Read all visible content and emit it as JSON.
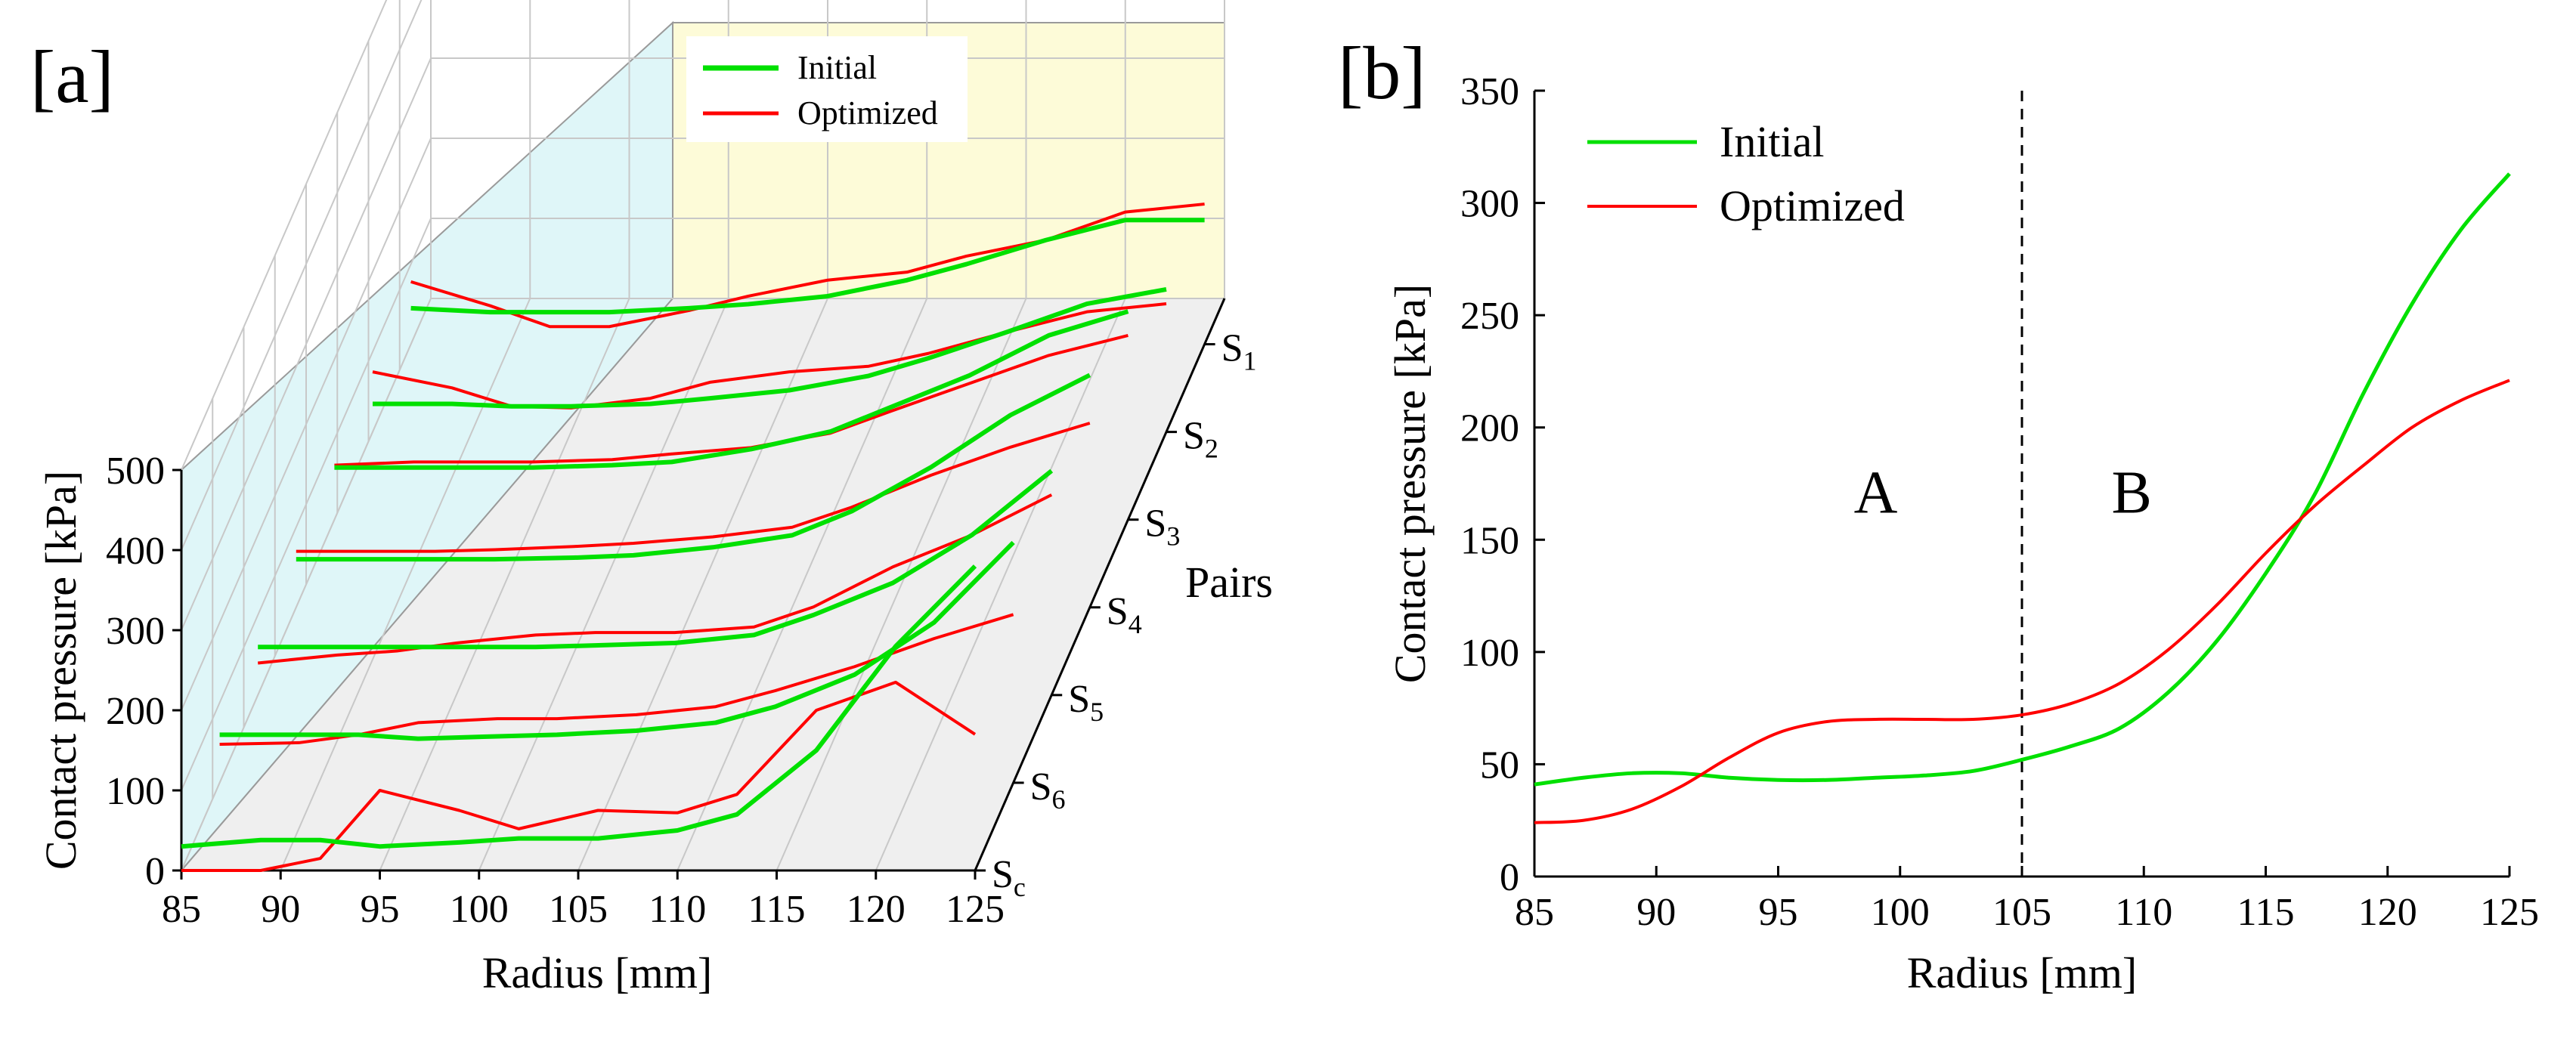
{
  "chart_data": [
    {
      "panel": "[a]",
      "type": "line",
      "xlabel": "Radius [mm]",
      "ylabel": "Contact pressure [kPa]",
      "zlabel": "Pairs",
      "xticks": [
        "85",
        "90",
        "95",
        "100",
        "105",
        "110",
        "115",
        "120",
        "125"
      ],
      "yticks": [
        "0",
        "100",
        "200",
        "300",
        "400",
        "500"
      ],
      "xlim": [
        85,
        125
      ],
      "ylim": [
        0,
        500
      ],
      "colors": {
        "initial": "#00e000",
        "optimized": "#ff0000",
        "back_wall": "#fdfbd8",
        "side_wall": "#dff6f8",
        "floor": "#efefef"
      },
      "legend": {
        "position": "top-right",
        "items": [
          {
            "key": "initial",
            "label": "Initial"
          },
          {
            "key": "optimized",
            "label": "Optimized"
          }
        ]
      },
      "pairs": [
        {
          "sub": "1",
          "x": [
            85,
            89,
            92,
            95,
            99,
            102,
            106,
            110,
            113,
            117,
            121,
            125
          ],
          "initial": [
            45,
            40,
            40,
            40,
            45,
            50,
            60,
            80,
            100,
            130,
            155,
            155
          ],
          "optimized": [
            78,
            48,
            22,
            22,
            42,
            60,
            80,
            90,
            110,
            130,
            165,
            175
          ]
        },
        {
          "sub": "2",
          "x": [
            85,
            89,
            92,
            95,
            99,
            102,
            106,
            110,
            113,
            117,
            121,
            125
          ],
          "initial": [
            35,
            35,
            32,
            32,
            35,
            42,
            52,
            70,
            92,
            125,
            160,
            178
          ],
          "optimized": [
            75,
            55,
            32,
            30,
            42,
            62,
            75,
            82,
            98,
            125,
            150,
            160
          ]
        },
        {
          "sub": "3",
          "x": [
            85,
            89,
            92,
            95,
            99,
            102,
            106,
            110,
            113,
            117,
            121,
            125
          ],
          "initial": [
            65,
            65,
            65,
            65,
            68,
            72,
            88,
            110,
            140,
            180,
            230,
            260
          ],
          "optimized": [
            68,
            72,
            72,
            72,
            75,
            82,
            90,
            108,
            135,
            170,
            205,
            230
          ]
        },
        {
          "sub": "4",
          "x": [
            85,
            89,
            92,
            95,
            99,
            102,
            106,
            110,
            113,
            117,
            121,
            125
          ],
          "initial": [
            60,
            60,
            60,
            60,
            62,
            65,
            75,
            90,
            120,
            175,
            240,
            290
          ],
          "optimized": [
            70,
            70,
            70,
            72,
            76,
            80,
            88,
            100,
            125,
            165,
            200,
            230
          ]
        },
        {
          "sub": "5",
          "x": [
            85,
            89,
            92,
            95,
            99,
            102,
            106,
            110,
            113,
            117,
            121,
            125
          ],
          "initial": [
            60,
            60,
            60,
            60,
            60,
            62,
            65,
            75,
            100,
            140,
            200,
            280
          ],
          "optimized": [
            40,
            50,
            55,
            65,
            75,
            78,
            78,
            85,
            110,
            160,
            200,
            250
          ]
        },
        {
          "sub": "6",
          "x": [
            85,
            89,
            92,
            95,
            99,
            102,
            106,
            110,
            113,
            117,
            121,
            125
          ],
          "initial": [
            60,
            60,
            60,
            55,
            58,
            60,
            65,
            75,
            95,
            135,
            200,
            300
          ],
          "optimized": [
            48,
            50,
            60,
            75,
            80,
            80,
            85,
            95,
            115,
            145,
            180,
            210
          ]
        },
        {
          "sub": "c",
          "x": [
            85,
            89,
            92,
            95,
            99,
            102,
            106,
            110,
            113,
            117,
            121,
            125
          ],
          "initial": [
            30,
            38,
            38,
            30,
            35,
            40,
            40,
            50,
            70,
            150,
            280,
            380
          ],
          "optimized": [
            0,
            0,
            15,
            100,
            75,
            52,
            75,
            72,
            95,
            200,
            235,
            170
          ]
        }
      ]
    },
    {
      "panel": "[b]",
      "type": "line",
      "xlabel": "Radius [mm]",
      "ylabel": "Contact pressure [kPa]",
      "xticks": [
        "85",
        "90",
        "95",
        "100",
        "105",
        "110",
        "115",
        "120",
        "125"
      ],
      "yticks": [
        "0",
        "50",
        "100",
        "150",
        "200",
        "250",
        "300",
        "350"
      ],
      "xlim": [
        85,
        125
      ],
      "ylim": [
        0,
        350
      ],
      "grid": false,
      "colors": {
        "initial": "#00e000",
        "optimized": "#ff0000"
      },
      "legend": {
        "position": "top-left",
        "items": [
          {
            "key": "initial",
            "label": "Initial"
          },
          {
            "key": "optimized",
            "label": "Optimized"
          }
        ]
      },
      "vline": {
        "x": 105,
        "style": "dashed"
      },
      "region_labels": [
        {
          "text": "A",
          "x": 99,
          "y": 162
        },
        {
          "text": "B",
          "x": 109.5,
          "y": 162
        }
      ],
      "series": [
        {
          "key": "initial",
          "x": [
            85,
            87,
            89,
            91,
            93,
            95,
            97,
            99,
            101,
            103,
            105,
            107,
            109,
            111,
            113,
            115,
            117,
            119,
            121,
            123,
            125
          ],
          "y": [
            41,
            44,
            46,
            46,
            44,
            43,
            43,
            44,
            45,
            47,
            52,
            58,
            66,
            82,
            105,
            135,
            170,
            215,
            255,
            288,
            313
          ]
        },
        {
          "key": "optimized",
          "x": [
            85,
            87,
            89,
            91,
            93,
            95,
            97,
            99,
            101,
            103,
            105,
            107,
            109,
            111,
            113,
            115,
            117,
            119,
            121,
            123,
            125
          ],
          "y": [
            24,
            25,
            30,
            40,
            53,
            64,
            69,
            70,
            70,
            70,
            72,
            77,
            86,
            101,
            121,
            144,
            165,
            183,
            200,
            212,
            221
          ]
        }
      ]
    }
  ]
}
